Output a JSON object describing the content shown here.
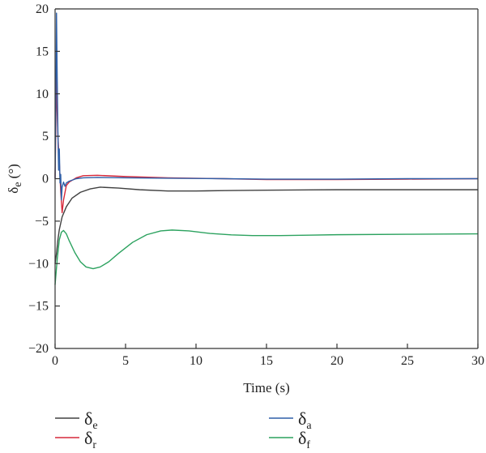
{
  "chart_data": {
    "type": "line",
    "xlabel": "Time (s)",
    "ylabel": "δe (°)",
    "ylabel_main": "δ",
    "ylabel_sub": "e",
    "ylabel_unit": " (°)",
    "xlim": [
      0,
      30
    ],
    "ylim": [
      -20,
      20
    ],
    "xticks": [
      0,
      5,
      10,
      15,
      20,
      25,
      30
    ],
    "yticks": [
      -20,
      -15,
      -10,
      -5,
      0,
      5,
      10,
      15,
      20
    ],
    "xtick_labels": [
      "0",
      "5",
      "10",
      "15",
      "20",
      "25",
      "30"
    ],
    "ytick_labels": [
      "−20",
      "−15",
      "−10",
      "−5",
      "0",
      "5",
      "10",
      "15",
      "20"
    ],
    "grid": false,
    "legend_position": "bottom",
    "series": [
      {
        "name": "δe",
        "name_main": "δ",
        "name_sub": "e",
        "color": "#404040",
        "x": [
          0,
          0.1,
          0.2,
          0.3,
          0.5,
          0.8,
          1.2,
          1.8,
          2.5,
          3.2,
          4.5,
          6,
          8,
          10,
          12,
          15,
          20,
          25,
          30
        ],
        "y": [
          -10,
          -8.8,
          -7.2,
          -6,
          -4.5,
          -3.3,
          -2.3,
          -1.6,
          -1.2,
          -1.0,
          -1.1,
          -1.3,
          -1.45,
          -1.45,
          -1.4,
          -1.35,
          -1.3,
          -1.3,
          -1.3
        ]
      },
      {
        "name": "δr",
        "name_main": "δ",
        "name_sub": "r",
        "color": "#d6283a",
        "x": [
          0,
          0.05,
          0.1,
          0.15,
          0.2,
          0.3,
          0.4,
          0.5,
          0.6,
          0.8,
          1.0,
          1.5,
          2.0,
          3.0,
          5,
          8,
          12,
          15,
          20,
          25,
          30
        ],
        "y": [
          0,
          6,
          13.5,
          8,
          5,
          2,
          -1.5,
          -4,
          -2.5,
          -0.8,
          -0.4,
          0.1,
          0.35,
          0.4,
          0.25,
          0.1,
          0,
          -0.1,
          -0.1,
          -0.05,
          0
        ]
      },
      {
        "name": "δa",
        "name_main": "δ",
        "name_sub": "a",
        "color": "#2e5fa8",
        "x": [
          0,
          0.05,
          0.1,
          0.15,
          0.2,
          0.25,
          0.3,
          0.35,
          0.4,
          0.45,
          0.5,
          0.6,
          0.7,
          0.8,
          1.0,
          1.5,
          2.0,
          3.0,
          5,
          8,
          12,
          15,
          20,
          25,
          30
        ],
        "y": [
          0,
          8,
          19.5,
          12,
          5.5,
          1,
          3.5,
          -0.5,
          0.5,
          -2.5,
          -1,
          -0.4,
          -0.9,
          -0.5,
          -0.3,
          0,
          0.1,
          0.15,
          0.1,
          0.05,
          0,
          -0.05,
          -0.05,
          0,
          0
        ]
      },
      {
        "name": "δf",
        "name_main": "δ",
        "name_sub": "f",
        "color": "#2ca25f",
        "x": [
          0,
          0.15,
          0.3,
          0.45,
          0.6,
          0.8,
          1.0,
          1.4,
          1.8,
          2.2,
          2.7,
          3.2,
          3.8,
          4.5,
          5.5,
          6.5,
          7.5,
          8.3,
          9.5,
          11,
          12.5,
          14,
          16,
          18,
          20,
          25,
          30
        ],
        "y": [
          -12.5,
          -9.5,
          -7.2,
          -6.3,
          -6.1,
          -6.5,
          -7.3,
          -8.7,
          -9.8,
          -10.4,
          -10.6,
          -10.4,
          -9.8,
          -8.8,
          -7.5,
          -6.6,
          -6.15,
          -6.05,
          -6.15,
          -6.45,
          -6.62,
          -6.7,
          -6.7,
          -6.65,
          -6.6,
          -6.55,
          -6.5
        ]
      }
    ]
  }
}
